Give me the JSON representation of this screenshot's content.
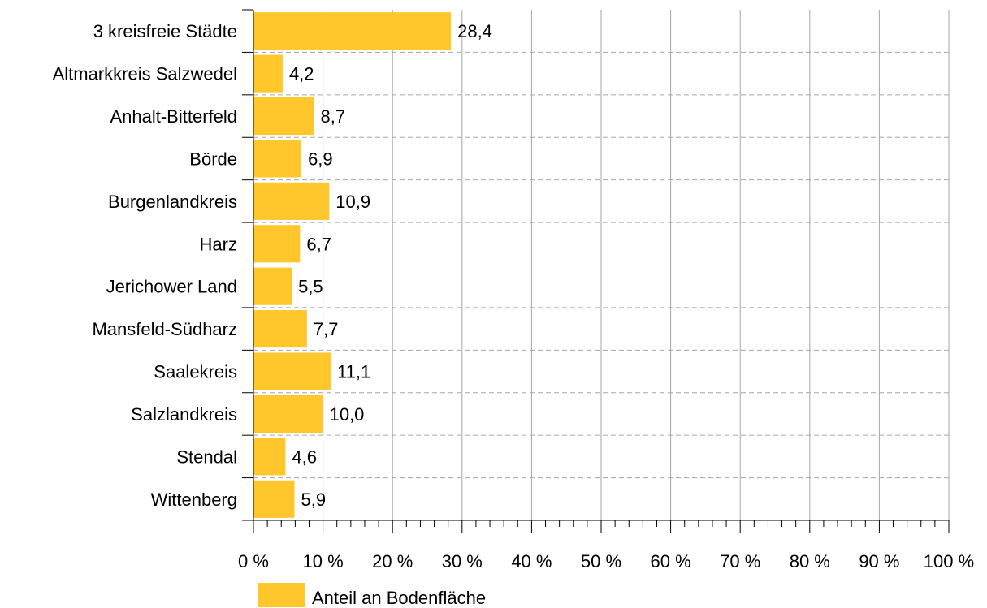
{
  "chart_data": {
    "type": "bar",
    "orientation": "horizontal",
    "categories": [
      "3 kreisfreie Städte",
      "Altmarkkreis Salzwedel",
      "Anhalt-Bitterfeld",
      "Börde",
      "Burgenlandkreis",
      "Harz",
      "Jerichower Land",
      "Mansfeld-Südharz",
      "Saalekreis",
      "Salzlandkreis",
      "Stendal",
      "Wittenberg"
    ],
    "series": [
      {
        "name": "Anteil an Bodenfläche",
        "values": [
          28.4,
          4.2,
          8.7,
          6.9,
          10.9,
          6.7,
          5.5,
          7.7,
          11.1,
          10.0,
          4.6,
          5.9
        ],
        "data_labels": [
          "28,4",
          "4,2",
          "8,7",
          "6,9",
          "10,9",
          "6,7",
          "5,5",
          "7,7",
          "11,1",
          "10,0",
          "4,6",
          "5,9"
        ],
        "color": "#FFC72C"
      }
    ],
    "xlim": [
      0,
      100
    ],
    "x_ticks": [
      0,
      10,
      20,
      30,
      40,
      50,
      60,
      70,
      80,
      90,
      100
    ],
    "x_tick_labels": [
      "0 %",
      "10 %",
      "20 %",
      "30 %",
      "40 %",
      "50 %",
      "60 %",
      "70 %",
      "80 %",
      "90 %",
      "100 %"
    ],
    "x_minor_step": 2,
    "grid_vertical": "solid",
    "grid_horizontal": "dashed",
    "grid_color": "#a6a6a6",
    "legend_position": "bottom-left"
  }
}
